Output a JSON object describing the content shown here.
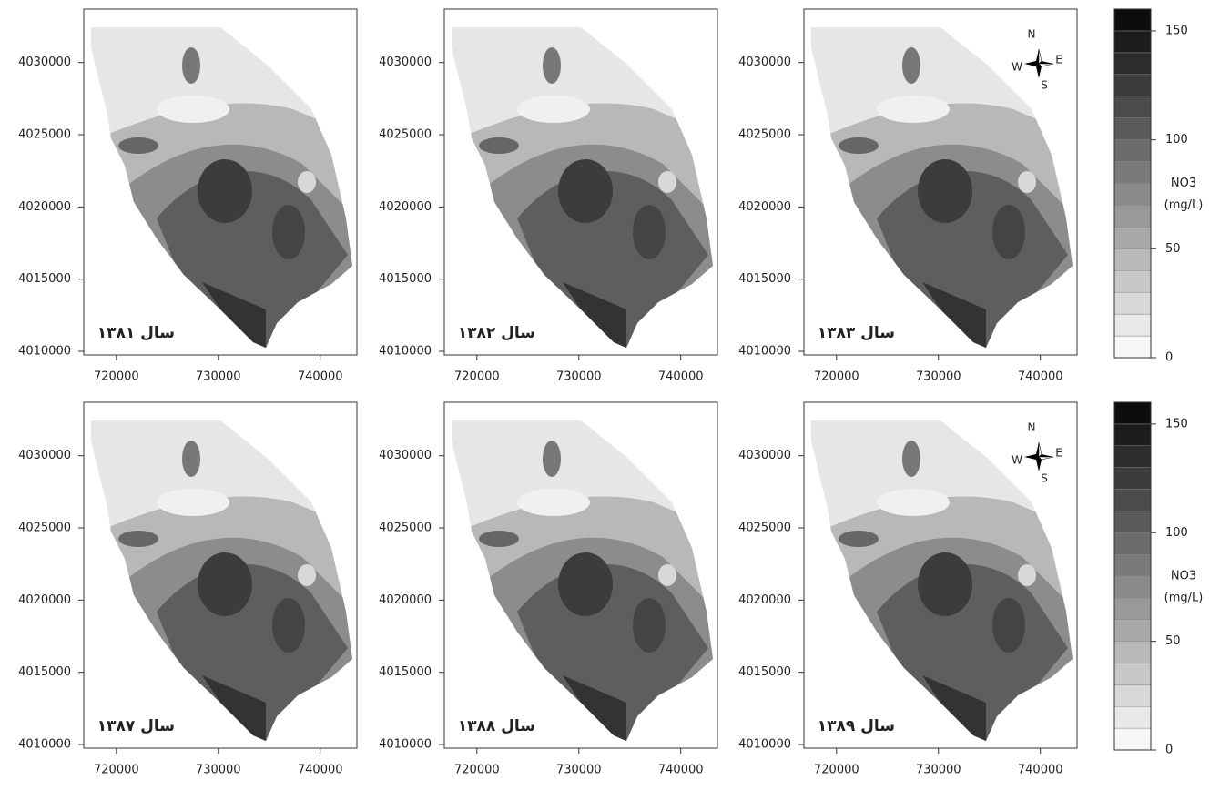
{
  "panels": [
    {
      "label": "سال ۱۳۸۱"
    },
    {
      "label": "سال ۱۳۸۲"
    },
    {
      "label": "سال ۱۳۸۳"
    },
    {
      "label": "سال ۱۳۸۷"
    },
    {
      "label": "سال ۱۳۸۸"
    },
    {
      "label": "سال ۱۳۸۹"
    }
  ],
  "xlim": [
    716800,
    743600
  ],
  "xticks": [
    720000,
    730000,
    740000
  ],
  "ylim": [
    4009750,
    4033700
  ],
  "yticks": [
    4010000,
    4015000,
    4020000,
    4025000,
    4030000
  ],
  "compass": {
    "n": "N",
    "e": "E",
    "s": "S",
    "w": "W"
  },
  "colorbar": {
    "title": "NO3",
    "unit": "(mg/L)",
    "lim": [
      0,
      160
    ],
    "ticks": [
      0,
      50,
      100,
      150
    ]
  }
}
